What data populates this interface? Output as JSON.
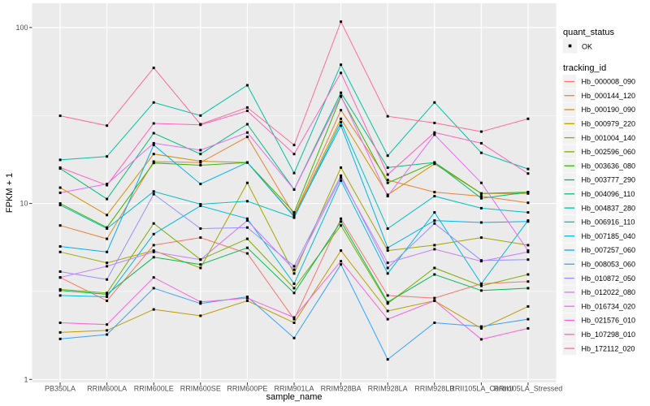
{
  "chart_data": {
    "type": "line",
    "title": "",
    "xlabel": "sample_name",
    "ylabel": "FPKM + 1",
    "y_scale": "log10",
    "ylim": [
      1,
      137
    ],
    "y_major_ticks": [
      1,
      10,
      100
    ],
    "y_tick_labels": [
      "1",
      "10",
      "100"
    ],
    "y_minor_ticks": [
      3.1623,
      31.623
    ],
    "grid": "on",
    "panel_bg": "#EBEBEB",
    "grid_color": "#FFFFFF",
    "tick_color": "#333333",
    "tick_label_color": "#4D4D4D",
    "point_color": "#000000",
    "legend_position": "right",
    "legend_key_bg": "#F2F2F2",
    "legend": {
      "quant_status_title": "quant_status",
      "ok_label": "OK",
      "ok_symbol": "point",
      "tracking_title": "tracking_id"
    },
    "x_categories": [
      "PB350LA",
      "RRIM600LA",
      "RRIM600LE",
      "RRIM600SE",
      "RRIM600PE",
      "RRIM901LA",
      "RRIM928BA",
      "RRIM928LA",
      "RRIM928LB",
      "RRII105LA_Control",
      "RRII105LA_Stressed"
    ],
    "series": [
      {
        "name": "Hb_000008_090",
        "color": "#F8766D",
        "quant_status": "OK",
        "values": [
          3.8,
          2.8,
          5.8,
          6.4,
          5.2,
          2.2,
          8.2,
          3.0,
          2.9,
          3.5,
          3.6
        ]
      },
      {
        "name": "Hb_000144_120",
        "color": "#EA8331",
        "quant_status": "OK",
        "values": [
          7.5,
          6.3,
          17.3,
          17.1,
          23.9,
          8.6,
          33.9,
          13.6,
          11.6,
          11.0,
          10.1
        ]
      },
      {
        "name": "Hb_000190_090",
        "color": "#D89000",
        "quant_status": "OK",
        "values": [
          12.3,
          8.6,
          19.1,
          17.4,
          17.1,
          8.5,
          30.3,
          11.2,
          16.8,
          11.4,
          11.4
        ]
      },
      {
        "name": "Hb_000979_220",
        "color": "#C09B00",
        "quant_status": "OK",
        "values": [
          1.85,
          1.9,
          2.5,
          2.3,
          2.8,
          2.1,
          5.4,
          2.45,
          2.8,
          1.95,
          2.6
        ]
      },
      {
        "name": "Hb_001004_140",
        "color": "#A3A500",
        "quant_status": "OK",
        "values": [
          5.3,
          4.6,
          5.4,
          4.3,
          13.1,
          4.0,
          16.0,
          5.4,
          5.8,
          6.4,
          5.8
        ]
      },
      {
        "name": "Hb_002596_060",
        "color": "#7CAE00",
        "quant_status": "OK",
        "values": [
          3.25,
          3.1,
          7.7,
          4.8,
          6.3,
          3.3,
          7.5,
          2.7,
          4.3,
          3.4,
          3.95
        ]
      },
      {
        "name": "Hb_003636_080",
        "color": "#39B600",
        "quant_status": "OK",
        "values": [
          10.0,
          7.3,
          17.0,
          16.5,
          17.1,
          8.9,
          40.5,
          13.1,
          17.1,
          11.4,
          11.6
        ]
      },
      {
        "name": "Hb_003777_290",
        "color": "#00BB4E",
        "quant_status": "OK",
        "values": [
          3.2,
          3.05,
          4.95,
          4.5,
          5.6,
          3.1,
          7.9,
          2.75,
          3.95,
          3.2,
          3.3
        ]
      },
      {
        "name": "Hb_004096_110",
        "color": "#00BF7D",
        "quant_status": "OK",
        "values": [
          15.8,
          10.6,
          25.1,
          19.1,
          28.2,
          12.0,
          42.6,
          16.0,
          17.1,
          10.7,
          11.6
        ]
      },
      {
        "name": "Hb_004837_280",
        "color": "#00C1A3",
        "quant_status": "OK",
        "values": [
          17.7,
          18.5,
          37.5,
          31.6,
          47.0,
          14.9,
          61.5,
          18.7,
          37.5,
          19.4,
          15.7
        ]
      },
      {
        "name": "Hb_006916_110",
        "color": "#00BFC4",
        "quant_status": "OK",
        "values": [
          9.8,
          7.2,
          11.7,
          9.9,
          10.3,
          8.3,
          29.0,
          7.2,
          11.0,
          9.4,
          8.9
        ]
      },
      {
        "name": "Hb_007185_040",
        "color": "#00BAE0",
        "quant_status": "OK",
        "values": [
          3.0,
          2.95,
          6.7,
          9.7,
          8.2,
          3.5,
          13.5,
          4.0,
          8.9,
          3.5,
          8.0
        ]
      },
      {
        "name": "Hb_007257_060",
        "color": "#00B0F6",
        "quant_status": "OK",
        "values": [
          5.7,
          5.3,
          21.5,
          12.9,
          17.1,
          8.4,
          27.7,
          5.6,
          8.0,
          7.8,
          7.9
        ]
      },
      {
        "name": "Hb_008053_060",
        "color": "#35A2FF",
        "quant_status": "OK",
        "values": [
          1.7,
          1.8,
          3.3,
          2.7,
          2.95,
          1.72,
          4.5,
          1.3,
          2.1,
          2.0,
          2.2
        ]
      },
      {
        "name": "Hb_010872_050",
        "color": "#9590FF",
        "quant_status": "OK",
        "values": [
          4.1,
          3.7,
          11.3,
          7.2,
          7.3,
          4.4,
          14.4,
          4.3,
          7.7,
          4.75,
          4.8
        ]
      },
      {
        "name": "Hb_012022_080",
        "color": "#C77CFF",
        "quant_status": "OK",
        "values": [
          3.8,
          4.4,
          5.3,
          4.8,
          8.0,
          4.2,
          14.0,
          4.6,
          5.5,
          4.7,
          5.3
        ]
      },
      {
        "name": "Hb_016734_020",
        "color": "#E76BF3",
        "quant_status": "OK",
        "values": [
          11.5,
          12.9,
          22.0,
          20.1,
          25.3,
          12.0,
          40.9,
          11.0,
          24.6,
          13.1,
          5.4
        ]
      },
      {
        "name": "Hb_021576_010",
        "color": "#FA62DB",
        "quant_status": "OK",
        "values": [
          2.1,
          2.05,
          3.8,
          2.76,
          2.9,
          2.25,
          4.7,
          2.2,
          2.8,
          1.69,
          1.95
        ]
      },
      {
        "name": "Hb_107298_010",
        "color": "#FF62BC",
        "quant_status": "OK",
        "values": [
          16.0,
          12.7,
          28.5,
          28.0,
          33.6,
          19.1,
          55.2,
          14.6,
          25.3,
          22.0,
          14.8
        ]
      },
      {
        "name": "Hb_172112_020",
        "color": "#FF6A98",
        "quant_status": "OK",
        "values": [
          31.5,
          27.7,
          59.0,
          28.2,
          35.1,
          21.5,
          108.0,
          31.3,
          28.7,
          25.6,
          30.3
        ]
      }
    ]
  }
}
